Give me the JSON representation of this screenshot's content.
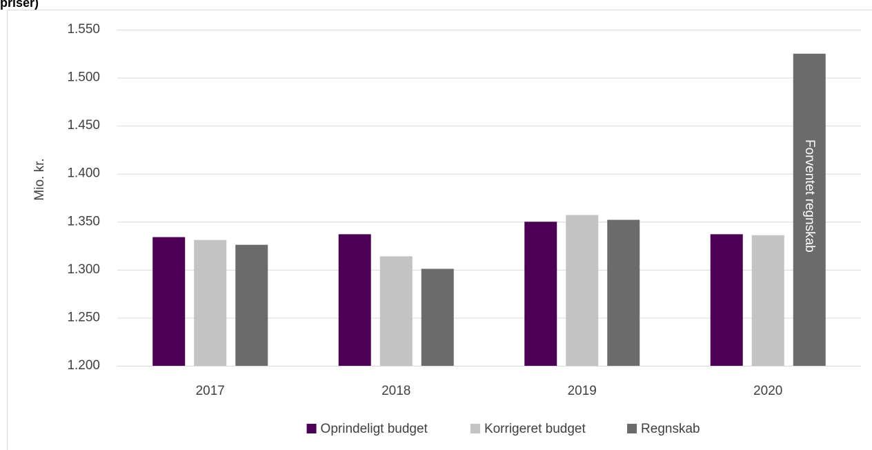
{
  "chart_data": {
    "type": "bar",
    "title": "priser)",
    "y_label": "Mio. kr.",
    "annotation": "Forventet regnskab",
    "categories": [
      "2017",
      "2018",
      "2019",
      "2020"
    ],
    "series": [
      {
        "name": "Oprindeligt budget",
        "color": "#4b0055",
        "values": [
          1334,
          1337,
          1350,
          1337
        ]
      },
      {
        "name": "Korrigeret budget",
        "color": "#c3c3c3",
        "values": [
          1331,
          1314,
          1357,
          1336
        ]
      },
      {
        "name": "Regnskab",
        "color": "#6b6b6b",
        "values": [
          1326,
          1301,
          1352,
          1525
        ]
      }
    ],
    "ylim": [
      1200,
      1550
    ],
    "yticks": [
      {
        "value": 1200,
        "label": "1.200"
      },
      {
        "value": 1250,
        "label": "1.250"
      },
      {
        "value": 1300,
        "label": "1.300"
      },
      {
        "value": 1350,
        "label": "1.350"
      },
      {
        "value": 1400,
        "label": "1.400"
      },
      {
        "value": 1450,
        "label": "1.450"
      },
      {
        "value": 1500,
        "label": "1.500"
      },
      {
        "value": 1550,
        "label": "1.550"
      }
    ],
    "grid": true
  }
}
